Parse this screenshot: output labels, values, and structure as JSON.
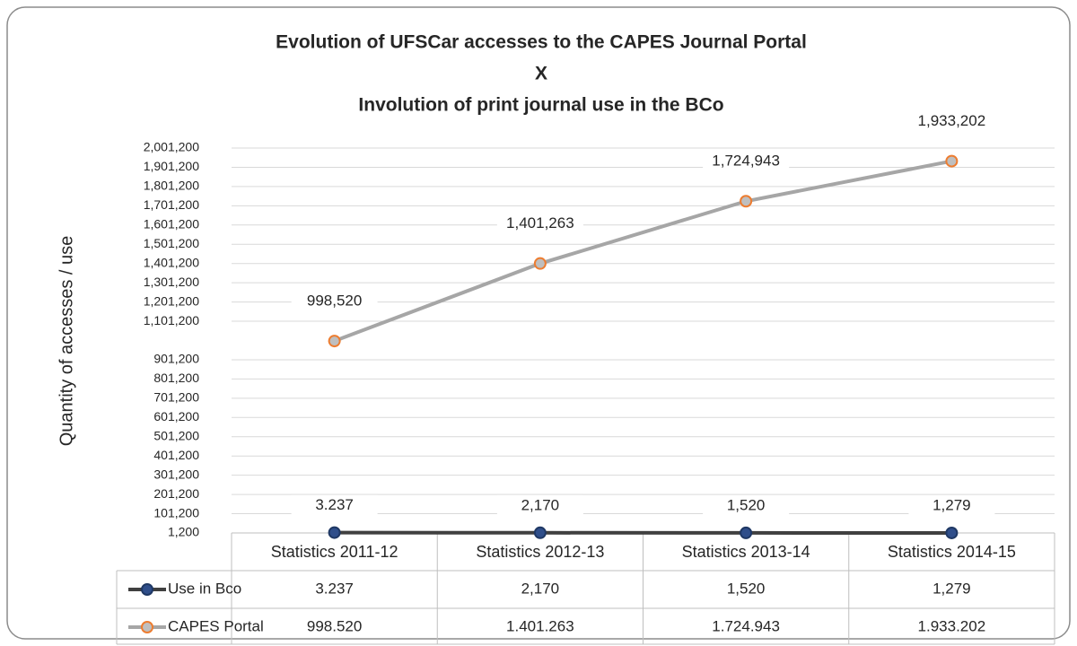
{
  "chart_data": {
    "type": "line",
    "title": [
      "Evolution of UFSCar accesses to the CAPES Journal Portal",
      "X",
      "Involution of print journal use in the BCo"
    ],
    "y_label": "Quantity of accesses / use",
    "categories": [
      "Statistics 2011-12",
      "Statistics 2012-13",
      "Statistics 2013-14",
      "Statistics 2014-15"
    ],
    "series": [
      {
        "name": "Use in Bco",
        "color": "#404040",
        "marker_color": "#2f4e8a",
        "values": [
          3237,
          2170,
          1520,
          1279
        ],
        "value_labels": [
          "3.237",
          "2,170",
          "1,520",
          "1,279"
        ],
        "table_labels": [
          "3.237",
          "2,170",
          "1,520",
          "1,279"
        ]
      },
      {
        "name": "CAPES Portal",
        "color": "#a6a6a6",
        "marker_color": "#ed7d31",
        "values": [
          998520,
          1401263,
          1724943,
          1933202
        ],
        "value_labels": [
          "998,520",
          "1,401,263",
          "1,724,943",
          "1,933,202"
        ],
        "table_labels": [
          "998.520",
          "1.401.263",
          "1.724.943",
          "1.933.202"
        ]
      }
    ],
    "ylim": [
      1200,
      2001200
    ],
    "yticks": [
      {
        "value": 1200,
        "label": "1,200"
      },
      {
        "value": 101200,
        "label": "101,200"
      },
      {
        "value": 201200,
        "label": "201,200"
      },
      {
        "value": 301200,
        "label": "301,200"
      },
      {
        "value": 401200,
        "label": "401,200"
      },
      {
        "value": 501200,
        "label": "501,200"
      },
      {
        "value": 601200,
        "label": "601,200"
      },
      {
        "value": 701200,
        "label": "701,200"
      },
      {
        "value": 801200,
        "label": "801,200"
      },
      {
        "value": 901200,
        "label": "901,200"
      },
      {
        "value": 1101200,
        "label": "1,101,200"
      },
      {
        "value": 1201200,
        "label": "1,201,200"
      },
      {
        "value": 1301200,
        "label": "1,301,200"
      },
      {
        "value": 1401200,
        "label": "1,401,200"
      },
      {
        "value": 1501200,
        "label": "1,501,200"
      },
      {
        "value": 1601200,
        "label": "1,601,200"
      },
      {
        "value": 1701200,
        "label": "1,701,200"
      },
      {
        "value": 1801200,
        "label": "1,801,200"
      },
      {
        "value": 1901200,
        "label": "1,901,200"
      },
      {
        "value": 2001200,
        "label": "2,001,200"
      }
    ],
    "grid": true
  }
}
